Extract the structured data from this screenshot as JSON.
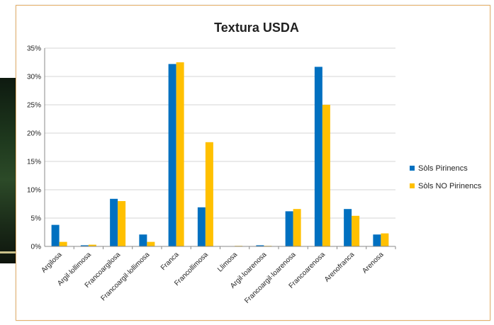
{
  "chart_data": {
    "type": "bar",
    "title": "Textura USDA",
    "xlabel": "",
    "ylabel": "",
    "ylim": [
      0,
      35
    ],
    "yticks": [
      "0%",
      "5%",
      "10%",
      "15%",
      "20%",
      "25%",
      "30%",
      "35%"
    ],
    "categories": [
      "Argilosa",
      "Argil·lollimosa",
      "Francoargilosa",
      "Francoargil·lollimosa",
      "Franca",
      "Francollimosa",
      "Llimosa",
      "Argil·loarenosa",
      "Francoargil·loarenosa",
      "Francoarenosa",
      "Arenofranca",
      "Arenosa"
    ],
    "series": [
      {
        "name": "Sòls Pirinencs",
        "color": "#0070c0",
        "values": [
          3.8,
          0.2,
          8.4,
          2.1,
          32.2,
          6.9,
          0.0,
          0.2,
          6.2,
          31.7,
          6.6,
          2.1
        ]
      },
      {
        "name": "Sòls NO Pirinencs",
        "color": "#ffc000",
        "values": [
          0.8,
          0.3,
          8.0,
          0.8,
          32.5,
          18.4,
          0.1,
          0.1,
          6.6,
          25.0,
          5.4,
          2.3
        ]
      }
    ],
    "grid": true,
    "legend": "right"
  }
}
